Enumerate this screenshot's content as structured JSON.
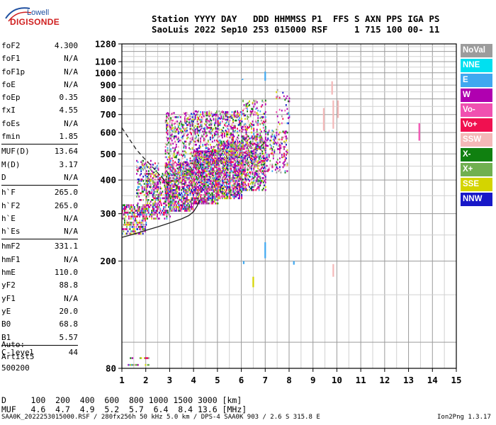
{
  "logo": {
    "line1": "Lowell",
    "line2": "DIGISONDE"
  },
  "header": {
    "row1": "Station YYYY DAY   DDD HHMMSS P1  FFS S AXN PPS IGA PS",
    "row2": "SaoLuis 2022 Sep10 253 015000 RSF     1 715 100 00- 11"
  },
  "params": [
    [
      {
        "label": "foF2",
        "value": "4.300"
      },
      {
        "label": "foF1",
        "value": "N/A"
      },
      {
        "label": "foF1p",
        "value": "N/A"
      },
      {
        "label": "foE",
        "value": "N/A"
      },
      {
        "label": "foEp",
        "value": "0.35"
      },
      {
        "label": "fxI",
        "value": "4.55"
      },
      {
        "label": "foEs",
        "value": "N/A"
      },
      {
        "label": "fmin",
        "value": "1.85"
      }
    ],
    [
      {
        "label": "MUF(D)",
        "value": "13.64"
      },
      {
        "label": "M(D)",
        "value": "3.17"
      },
      {
        "label": "D",
        "value": "N/A"
      }
    ],
    [
      {
        "label": "h`F",
        "value": "265.0"
      },
      {
        "label": "h`F2",
        "value": "265.0"
      },
      {
        "label": "h`E",
        "value": "N/A"
      },
      {
        "label": "h`Es",
        "value": "N/A"
      }
    ],
    [
      {
        "label": "hmF2",
        "value": "331.1"
      },
      {
        "label": "hmF1",
        "value": "N/A"
      },
      {
        "label": "hmE",
        "value": "110.0"
      },
      {
        "label": "yF2",
        "value": "88.8"
      },
      {
        "label": "yF1",
        "value": "N/A"
      },
      {
        "label": "yE",
        "value": "20.0"
      },
      {
        "label": "B0",
        "value": "68.8"
      },
      {
        "label": "B1",
        "value": "5.57"
      }
    ],
    [
      {
        "label": "C-level",
        "value": "44"
      }
    ]
  ],
  "auto": [
    "Auto:",
    "Artist5",
    "500200"
  ],
  "muf_table": {
    "row1": "D     100  200  400  600  800 1000 1500 3000 [km]",
    "row2": "MUF   4.6  4.7  4.9  5.2  5.7  6.4  8.4 13.6 [MHz]"
  },
  "footer": {
    "source": "SAA0K_2022253015000.RSF / 280fx256h 50 kHz 5.0 km / DPS-4 SAA0K 903 / 2.6 S 315.8 E",
    "version": "Ion2Png 1.3.17"
  },
  "legend": [
    {
      "label": "NoVal",
      "color": "#9c9c9c"
    },
    {
      "label": "NNE",
      "color": "#00e0f0"
    },
    {
      "label": "E",
      "color": "#40a8f0"
    },
    {
      "label": "W",
      "color": "#b000b0"
    },
    {
      "label": "Vo-",
      "color": "#f050b0"
    },
    {
      "label": "Vo+",
      "color": "#f01050"
    },
    {
      "label": "SSW",
      "color": "#f4b8b8"
    },
    {
      "label": "X-",
      "color": "#108010"
    },
    {
      "label": "X+",
      "color": "#70b050"
    },
    {
      "label": "SSE",
      "color": "#d4d400"
    },
    {
      "label": "NNW",
      "color": "#1818c8"
    }
  ],
  "chart_data": {
    "type": "scatter",
    "title": "",
    "xlabel": "",
    "ylabel": "",
    "xlim": [
      1,
      15
    ],
    "ylim": [
      80,
      1280
    ],
    "x_ticks": [
      1,
      2,
      3,
      4,
      5,
      6,
      7,
      8,
      9,
      10,
      11,
      12,
      13,
      14,
      15
    ],
    "y_ticks": [
      80,
      200,
      300,
      400,
      500,
      600,
      700,
      800,
      900,
      1000,
      1100,
      1280
    ],
    "y_scale": "log",
    "grid": true,
    "legend_position": "right",
    "traces": [
      {
        "name": "profile",
        "style": "solid",
        "points": [
          [
            1.0,
            245
          ],
          [
            1.5,
            252
          ],
          [
            2.0,
            260
          ],
          [
            2.5,
            268
          ],
          [
            3.0,
            277
          ],
          [
            3.5,
            287
          ],
          [
            3.8,
            295
          ],
          [
            4.0,
            305
          ],
          [
            4.15,
            320
          ],
          [
            4.25,
            338
          ]
        ]
      },
      {
        "name": "virtual-height",
        "style": "dashed",
        "points": [
          [
            1.0,
            625
          ],
          [
            1.3,
            570
          ],
          [
            1.6,
            520
          ],
          [
            1.9,
            485
          ],
          [
            2.2,
            455
          ],
          [
            2.5,
            425
          ],
          [
            2.8,
            398
          ],
          [
            3.0,
            380
          ]
        ]
      }
    ],
    "echo_regions": [
      {
        "fmin": 1.0,
        "fmax": 2.0,
        "hmin": 255,
        "hmax": 330,
        "density": 0.55
      },
      {
        "fmin": 1.2,
        "fmax": 2.1,
        "hmin": 83,
        "hmax": 92,
        "density": 0.7
      },
      {
        "fmin": 1.6,
        "fmax": 2.5,
        "hmin": 300,
        "hmax": 480,
        "density": 0.25
      },
      {
        "fmin": 2.0,
        "fmax": 3.0,
        "hmin": 290,
        "hmax": 430,
        "density": 0.45
      },
      {
        "fmin": 2.8,
        "fmax": 4.0,
        "hmin": 310,
        "hmax": 470,
        "density": 0.7
      },
      {
        "fmin": 2.8,
        "fmax": 4.0,
        "hmin": 470,
        "hmax": 720,
        "density": 0.22
      },
      {
        "fmin": 4.0,
        "fmax": 5.0,
        "hmin": 330,
        "hmax": 520,
        "density": 0.75
      },
      {
        "fmin": 4.0,
        "fmax": 5.0,
        "hmin": 520,
        "hmax": 730,
        "density": 0.25
      },
      {
        "fmin": 5.0,
        "fmax": 6.0,
        "hmin": 345,
        "hmax": 560,
        "density": 0.7
      },
      {
        "fmin": 5.0,
        "fmax": 6.0,
        "hmin": 560,
        "hmax": 730,
        "density": 0.25
      },
      {
        "fmin": 6.0,
        "fmax": 7.0,
        "hmin": 370,
        "hmax": 590,
        "density": 0.5
      },
      {
        "fmin": 6.0,
        "fmax": 7.0,
        "hmin": 590,
        "hmax": 800,
        "density": 0.15
      },
      {
        "fmin": 7.0,
        "fmax": 7.9,
        "hmin": 430,
        "hmax": 620,
        "density": 0.25
      },
      {
        "fmin": 7.4,
        "fmax": 8.0,
        "hmin": 620,
        "hmax": 880,
        "density": 0.05
      }
    ],
    "echo_streaks": [
      {
        "f": 9.45,
        "h1": 610,
        "h2": 740,
        "color": "SSW"
      },
      {
        "f": 9.8,
        "h1": 830,
        "h2": 930,
        "color": "SSW"
      },
      {
        "f": 9.85,
        "h1": 620,
        "h2": 790,
        "color": "SSW"
      },
      {
        "f": 10.05,
        "h1": 680,
        "h2": 790,
        "color": "SSW"
      },
      {
        "f": 9.85,
        "h1": 175,
        "h2": 195,
        "color": "SSW"
      },
      {
        "f": 13.45,
        "h1": 560,
        "h2": 650,
        "color": "Vo-"
      },
      {
        "f": 6.05,
        "h1": 940,
        "h2": 950,
        "color": "E"
      },
      {
        "f": 7.0,
        "h1": 935,
        "h2": 1010,
        "color": "E"
      },
      {
        "f": 7.0,
        "h1": 205,
        "h2": 235,
        "color": "E"
      },
      {
        "f": 8.2,
        "h1": 194,
        "h2": 200,
        "color": "E"
      },
      {
        "f": 6.1,
        "h1": 195,
        "h2": 200,
        "color": "E"
      },
      {
        "f": 6.5,
        "h1": 160,
        "h2": 175,
        "color": "SSE"
      }
    ]
  }
}
